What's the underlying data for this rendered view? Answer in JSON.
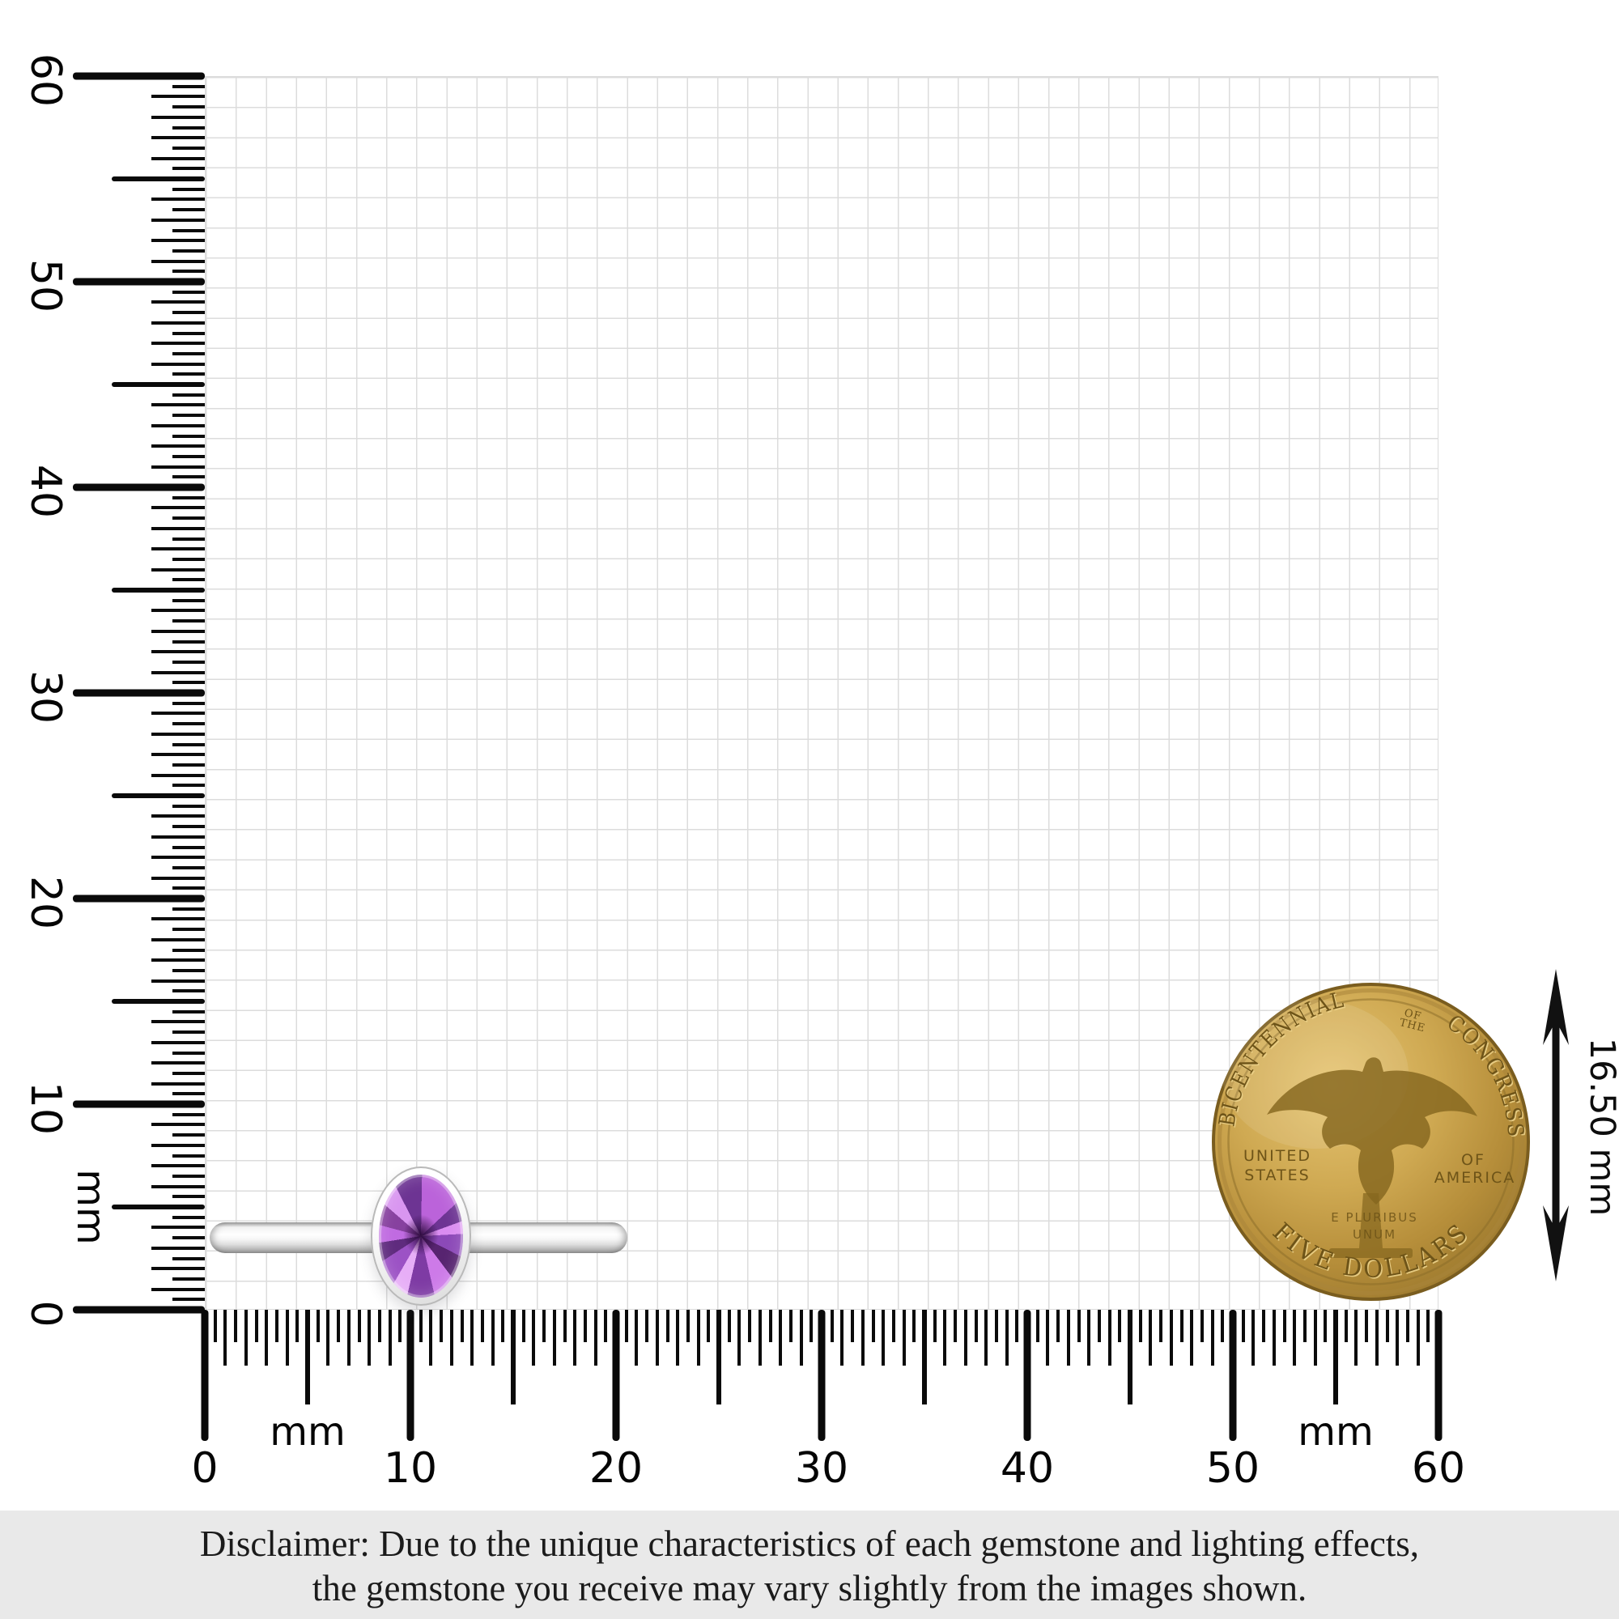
{
  "ruler": {
    "unit": "mm",
    "major_labels": [
      "0",
      "10",
      "20",
      "30",
      "40",
      "50",
      "60"
    ],
    "left_unit_label": "mm",
    "bottom_unit_labels": [
      "mm",
      "mm"
    ]
  },
  "measurement": {
    "coin_diameter_label": "16.50 mm"
  },
  "coin": {
    "legend_top_left": "BICENTENNIAL",
    "legend_top_mid_line1": "OF",
    "legend_top_mid_line2": "THE",
    "legend_top_right": "CONGRESS",
    "left_field_line1": "UNITED",
    "left_field_line2": "STATES",
    "right_field_line1": "OF",
    "right_field_line2": "AMERICA",
    "motto_line1": "E PLURIBUS",
    "motto_line2": "UNUM",
    "legend_bottom": "FIVE DOLLARS"
  },
  "disclaimer": {
    "line1": "Disclaimer: Due to the unique characteristics of each gemstone and lighting effects,",
    "line2": "the gemstone you receive may vary slightly from the images shown."
  },
  "colors": {
    "tick": "#0a0a0a",
    "grid_line": "#dcdcdc",
    "disclaimer_bg": "#e9e9e9",
    "gold_light": "#e6c573",
    "gold_mid": "#cfa952",
    "gold_dark": "#8a6a26",
    "coin_letter": "#6e5418",
    "gem_light": "#d996f0",
    "gem_mid": "#9c52c5",
    "gem_dark": "#572470",
    "metal_white": "#ffffff",
    "metal_gray": "#9a9a9a"
  }
}
